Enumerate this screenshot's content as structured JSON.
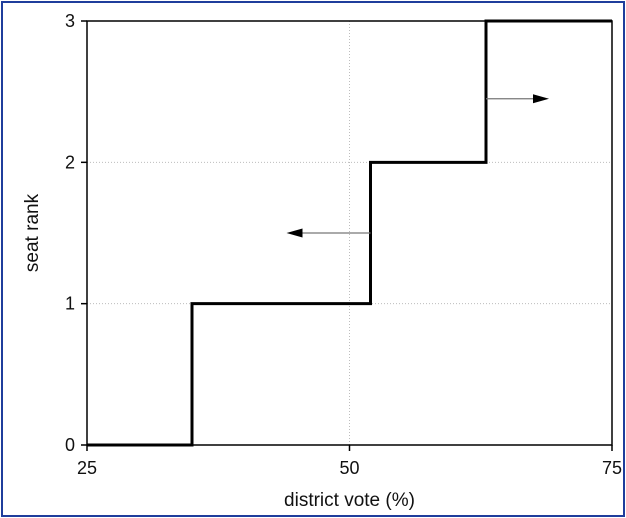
{
  "chart_data": {
    "type": "line",
    "xlabel": "district vote (%)",
    "ylabel": "seat rank",
    "xlim": [
      25,
      75
    ],
    "ylim": [
      0,
      3
    ],
    "x_ticks": [
      25,
      50,
      75
    ],
    "y_ticks": [
      0,
      1,
      2,
      3
    ],
    "grid": true,
    "series": [
      {
        "style": "step-post",
        "color": "#000000",
        "x": [
          25,
          35,
          52,
          63,
          75
        ],
        "y": [
          0,
          1,
          2,
          3,
          3
        ]
      }
    ],
    "annotations": [
      {
        "type": "arrow",
        "direction": "left",
        "from": [
          52,
          1.5
        ],
        "to": [
          44,
          1.5
        ]
      },
      {
        "type": "arrow",
        "direction": "right",
        "from": [
          63,
          2.45
        ],
        "to": [
          69,
          2.45
        ]
      }
    ]
  }
}
